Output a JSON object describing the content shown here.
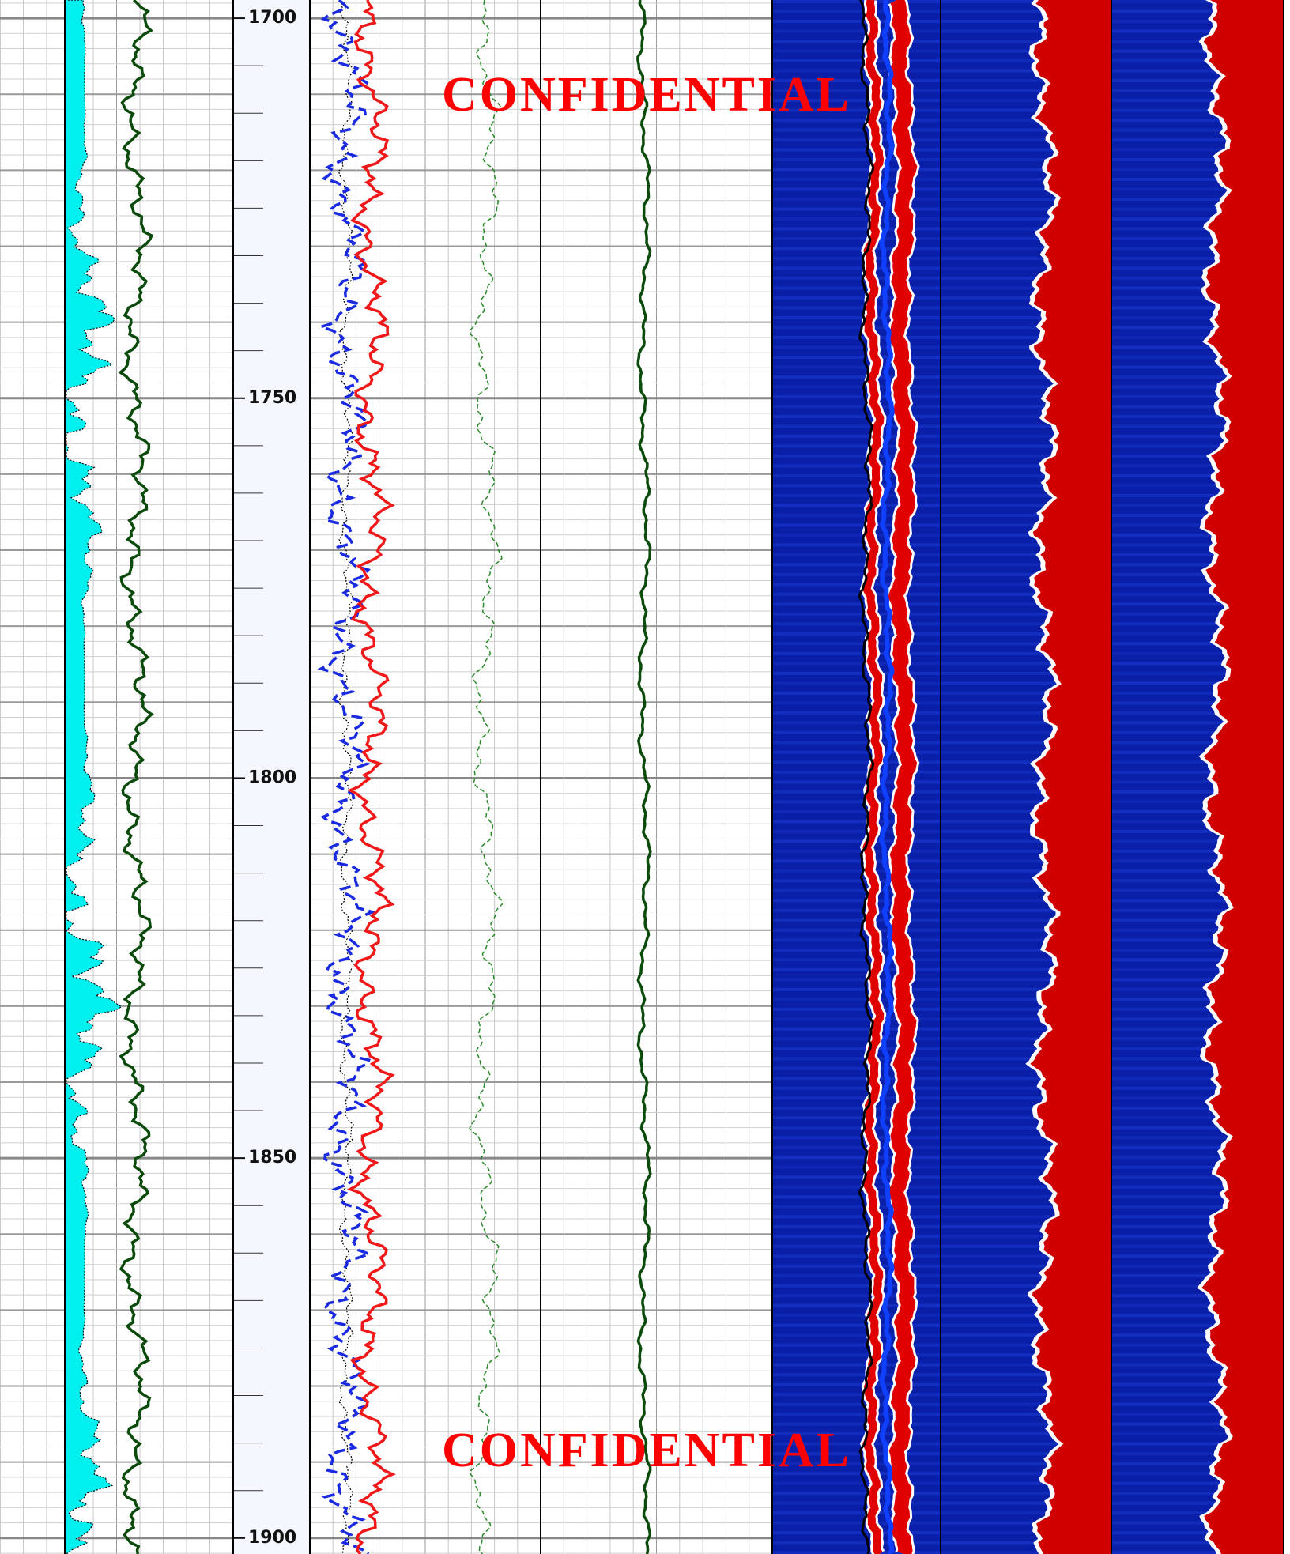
{
  "chart_data": {
    "type": "well-log",
    "ylim": [
      1697.6,
      1902.1
    ],
    "yticks": [
      1700,
      1750,
      1800,
      1850,
      1900
    ],
    "annotations": [
      "CONFIDENTIAL",
      "CONFIDENTIAL"
    ],
    "grid": true
  }
}
